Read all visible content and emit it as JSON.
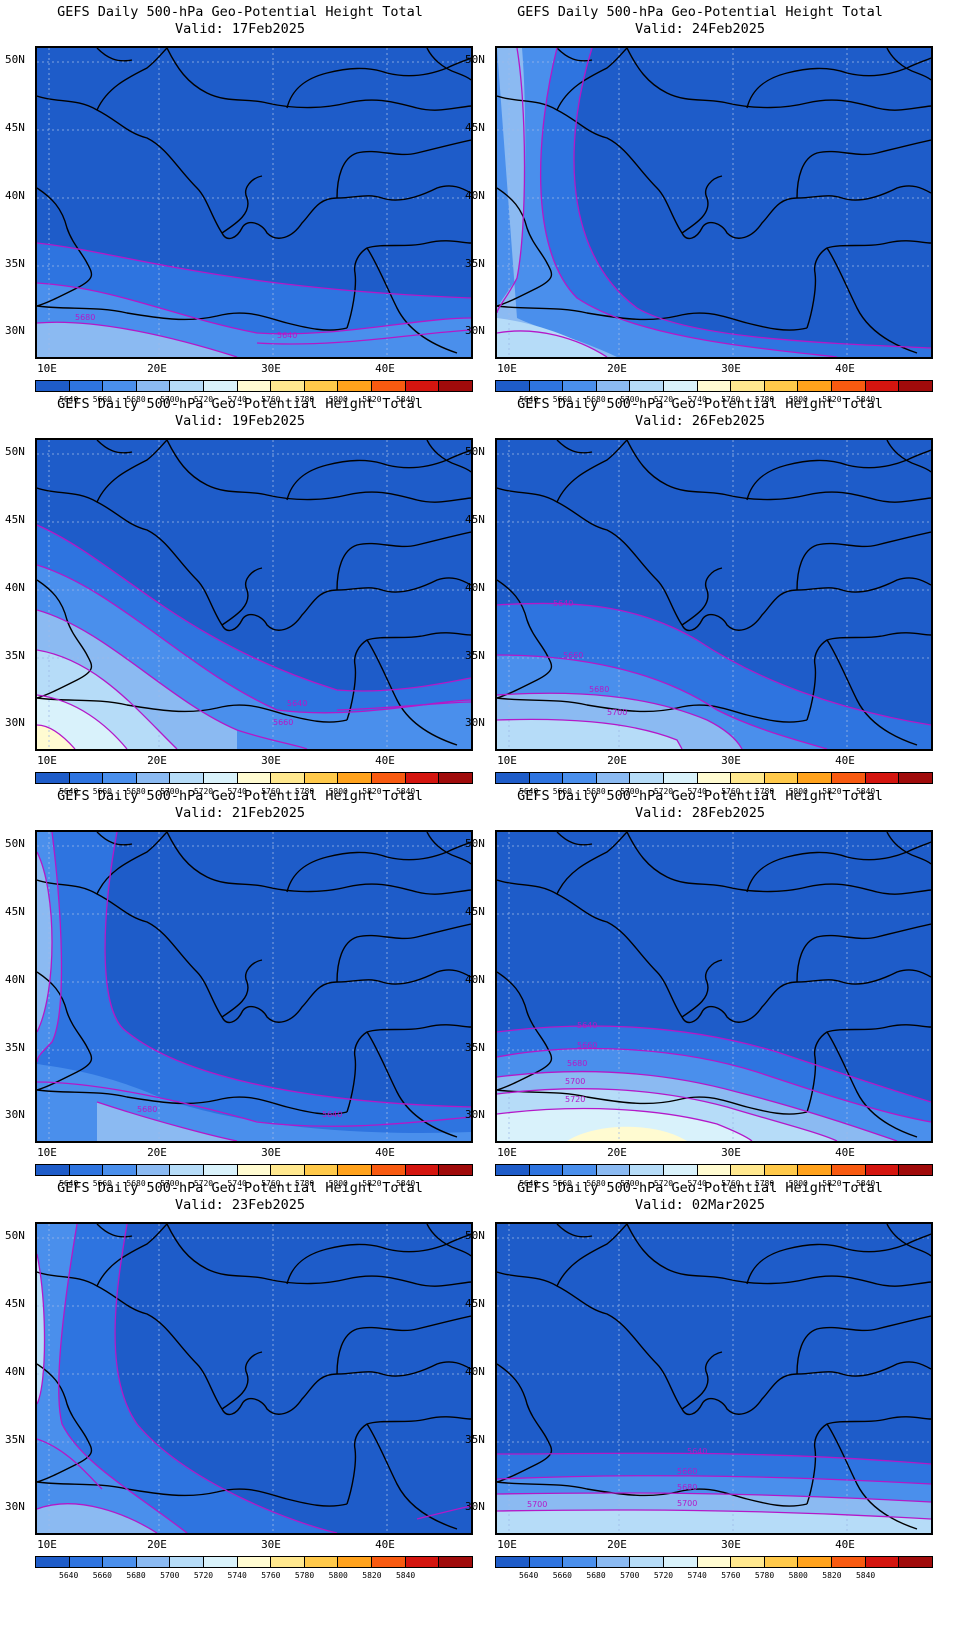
{
  "title": "GEFS Daily 500-hPa Geo-Potential Height Total",
  "valid_prefix": "Valid: ",
  "y_ticks": [
    "50N",
    "45N",
    "40N",
    "35N",
    "30N"
  ],
  "x_ticks": [
    "10E",
    "20E",
    "30E",
    "40E"
  ],
  "colorbar": {
    "colors": [
      "#1e5cc9",
      "#2e74e0",
      "#4a8fec",
      "#8bbaf2",
      "#b6dcf8",
      "#d9f2fb",
      "#fffbd1",
      "#ffe88f",
      "#ffc94a",
      "#ffa21c",
      "#f85a10",
      "#d4150f",
      "#a00b0b"
    ],
    "labels": [
      "5640",
      "5660",
      "5680",
      "5700",
      "5720",
      "5740",
      "5760",
      "5780",
      "5800",
      "5820",
      "5840"
    ]
  },
  "panels": [
    {
      "valid": "17Feb2025",
      "contour_labels": [
        "5680",
        "5640"
      ]
    },
    {
      "valid": "24Feb2025",
      "contour_labels": []
    },
    {
      "valid": "19Feb2025",
      "contour_labels": [
        "5640",
        "5660"
      ]
    },
    {
      "valid": "26Feb2025",
      "contour_labels": [
        "5640",
        "5660",
        "5680",
        "5700"
      ]
    },
    {
      "valid": "21Feb2025",
      "contour_labels": [
        "5680",
        "5640"
      ]
    },
    {
      "valid": "28Feb2025",
      "contour_labels": [
        "5640",
        "5660",
        "5680",
        "5700",
        "5720"
      ]
    },
    {
      "valid": "23Feb2025",
      "contour_labels": []
    },
    {
      "valid": "02Mar2025",
      "contour_labels": [
        "5640",
        "5660",
        "5680",
        "5700",
        "5700"
      ]
    }
  ]
}
